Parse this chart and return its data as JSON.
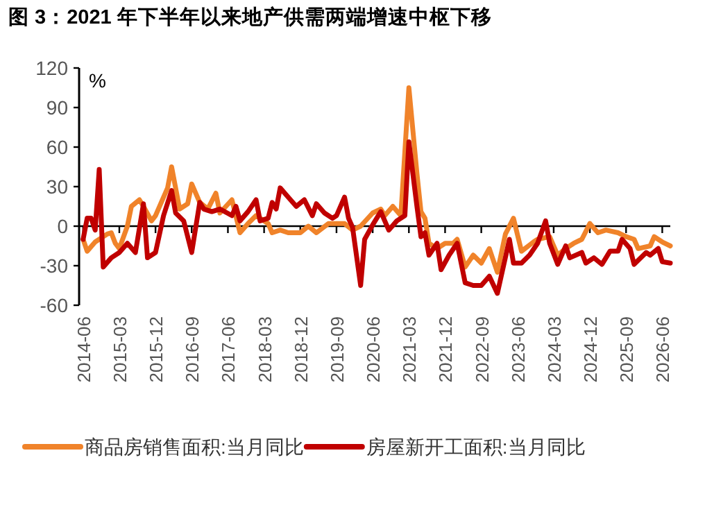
{
  "chart_data": {
    "type": "line",
    "title": "图 3：2021 年下半年以来地产供需两端增速中枢下移",
    "ylabel": "%",
    "ylim": [
      -60,
      120
    ],
    "yticks": [
      -60,
      -30,
      0,
      30,
      60,
      90,
      120
    ],
    "xlim": [
      "2014-05",
      "2026-08"
    ],
    "xticks": [
      "2014-06",
      "2015-03",
      "2015-12",
      "2016-09",
      "2017-06",
      "2018-03",
      "2018-12",
      "2019-09",
      "2020-06",
      "2021-03",
      "2021-12",
      "2022-09",
      "2023-06",
      "2024-03",
      "2024-12",
      "2025-09",
      "2026-06"
    ],
    "legend": "bottom",
    "line_style": "solid",
    "marker": "none",
    "series": [
      {
        "name": "商品房销售面积:当月同比",
        "color": "#f0832a",
        "x": [
          "2014-06",
          "2014-07",
          "2014-09",
          "2014-12",
          "2015-01",
          "2015-02",
          "2015-03",
          "2015-05",
          "2015-06",
          "2015-08",
          "2015-09",
          "2015-11",
          "2015-12",
          "2016-03",
          "2016-04",
          "2016-06",
          "2016-08",
          "2016-09",
          "2016-11",
          "2017-01",
          "2017-03",
          "2017-04",
          "2017-07",
          "2017-09",
          "2017-11",
          "2018-01",
          "2018-04",
          "2018-05",
          "2018-07",
          "2018-09",
          "2018-12",
          "2019-02",
          "2019-04",
          "2019-07",
          "2019-09",
          "2019-11",
          "2020-01",
          "2020-03",
          "2020-06",
          "2020-08",
          "2020-09",
          "2020-11",
          "2021-01",
          "2021-03",
          "2021-05",
          "2021-06",
          "2021-07",
          "2021-08",
          "2021-10",
          "2021-12",
          "2022-02",
          "2022-03",
          "2022-05",
          "2022-07",
          "2022-09",
          "2022-11",
          "2023-01",
          "2023-03",
          "2023-05",
          "2023-07",
          "2023-10",
          "2023-11",
          "2024-02",
          "2024-04",
          "2024-06",
          "2024-08",
          "2024-10",
          "2024-12",
          "2025-02",
          "2025-04",
          "2025-07",
          "2025-09",
          "2025-11",
          "2025-12",
          "2026-03",
          "2026-04",
          "2026-06",
          "2026-08"
        ],
        "values": [
          -10,
          -19,
          -12,
          -6,
          -5,
          -13,
          -17,
          0,
          15,
          20,
          15,
          4,
          8,
          29,
          45,
          13,
          17,
          32,
          18,
          13,
          25,
          10,
          20,
          -5,
          2,
          8,
          2,
          -5,
          -3,
          -5,
          -5,
          0,
          -5,
          2,
          2,
          2,
          -3,
          0,
          10,
          13,
          8,
          15,
          8,
          105,
          40,
          11,
          6,
          -13,
          -17,
          -13,
          -13,
          -10,
          -31,
          -22,
          -28,
          -17,
          -35,
          -6,
          6,
          -19,
          -12,
          -10,
          -8,
          -22,
          -17,
          -13,
          -10,
          2,
          -5,
          -3,
          -5,
          -8,
          -10,
          -17,
          -15,
          -8,
          -12,
          -15
        ]
      },
      {
        "name": "房屋新开工面积:当月同比",
        "color": "#c00000",
        "x": [
          "2014-06",
          "2014-07",
          "2014-08",
          "2014-09",
          "2014-10",
          "2014-11",
          "2015-01",
          "2015-03",
          "2015-05",
          "2015-07",
          "2015-09",
          "2015-10",
          "2015-12",
          "2016-02",
          "2016-04",
          "2016-05",
          "2016-07",
          "2016-09",
          "2016-11",
          "2016-12",
          "2017-02",
          "2017-04",
          "2017-07",
          "2017-08",
          "2017-09",
          "2017-11",
          "2018-01",
          "2018-02",
          "2018-04",
          "2018-05",
          "2018-06",
          "2018-07",
          "2018-09",
          "2018-11",
          "2019-01",
          "2019-03",
          "2019-04",
          "2019-06",
          "2019-08",
          "2019-09",
          "2019-11",
          "2019-12",
          "2020-01",
          "2020-03",
          "2020-04",
          "2020-06",
          "2020-08",
          "2020-10",
          "2020-12",
          "2021-02",
          "2021-03",
          "2021-05",
          "2021-06",
          "2021-07",
          "2021-08",
          "2021-10",
          "2021-11",
          "2022-01",
          "2022-03",
          "2022-05",
          "2022-07",
          "2022-09",
          "2022-11",
          "2023-01",
          "2023-04",
          "2023-05",
          "2023-07",
          "2023-09",
          "2023-11",
          "2024-01",
          "2024-02",
          "2024-04",
          "2024-06",
          "2024-07",
          "2024-10",
          "2024-11",
          "2025-01",
          "2025-03",
          "2025-05",
          "2025-07",
          "2025-08",
          "2025-10",
          "2025-11",
          "2026-02",
          "2026-03",
          "2026-05",
          "2026-06",
          "2026-08"
        ],
        "values": [
          -10,
          6,
          6,
          -3,
          43,
          -31,
          -24,
          -20,
          -13,
          -20,
          17,
          -24,
          -20,
          8,
          27,
          10,
          4,
          -20,
          18,
          13,
          11,
          13,
          8,
          15,
          4,
          11,
          20,
          4,
          6,
          18,
          13,
          29,
          22,
          15,
          20,
          8,
          17,
          10,
          6,
          8,
          22,
          6,
          -1,
          -45,
          -10,
          1,
          11,
          -3,
          4,
          8,
          64,
          15,
          -8,
          -5,
          -22,
          -13,
          -33,
          -22,
          -13,
          -43,
          -45,
          -45,
          -38,
          -51,
          -10,
          -28,
          -28,
          -22,
          -13,
          4,
          -13,
          -29,
          -15,
          -24,
          -20,
          -28,
          -24,
          -29,
          -19,
          -19,
          -10,
          -17,
          -29,
          -20,
          -22,
          -17,
          -27,
          -28
        ]
      }
    ]
  }
}
